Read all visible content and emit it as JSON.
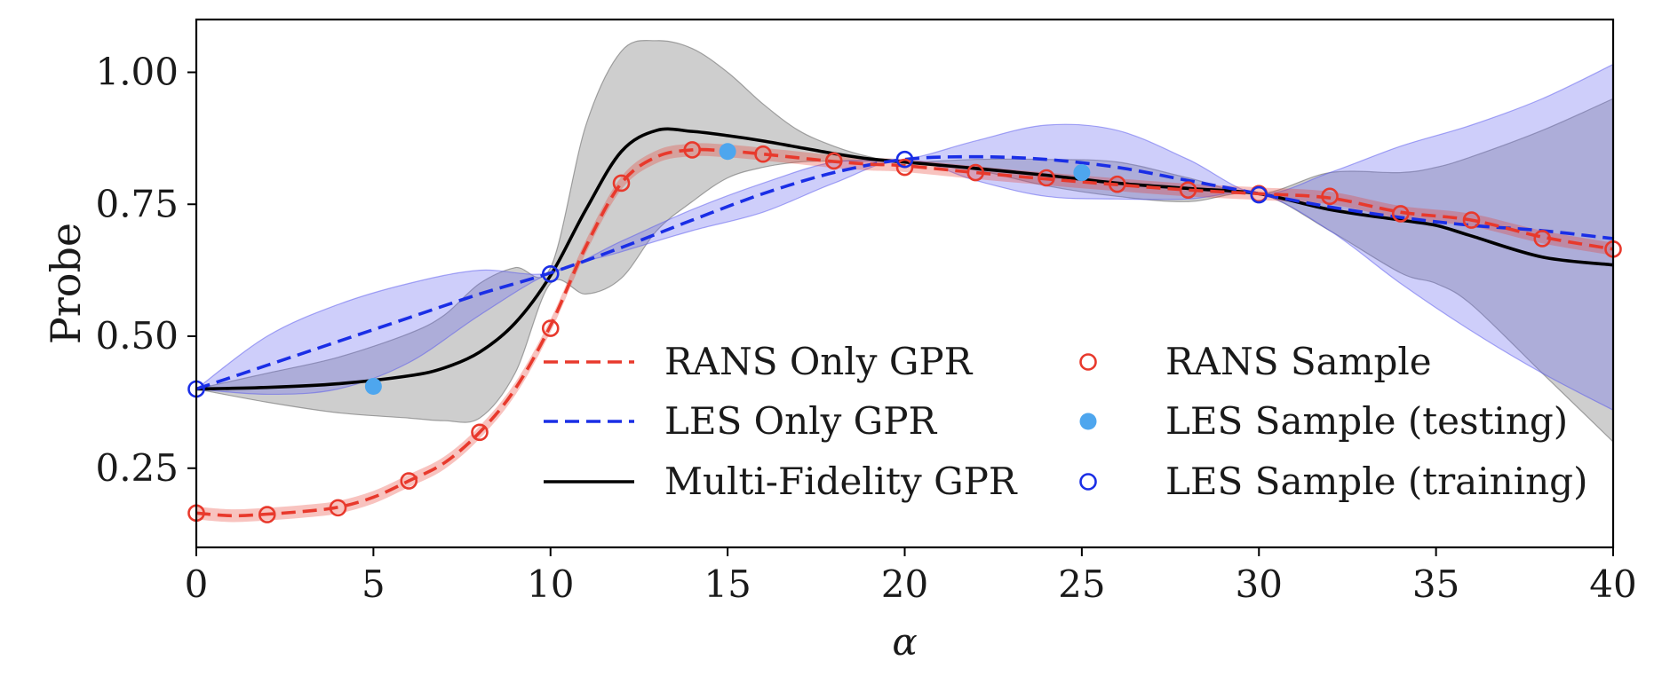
{
  "chart_data": {
    "type": "line",
    "title": "",
    "xlabel": "α",
    "ylabel": "Probe",
    "xlim": [
      0,
      40
    ],
    "ylim": [
      0.1,
      1.1
    ],
    "x_ticks": [
      0,
      5,
      10,
      15,
      20,
      25,
      30,
      35,
      40
    ],
    "x_tick_labels": [
      "0",
      "5",
      "10",
      "15",
      "20",
      "25",
      "30",
      "35",
      "40"
    ],
    "y_ticks": [
      0.25,
      0.5,
      0.75,
      1.0
    ],
    "y_tick_labels": [
      "0.25",
      "0.50",
      "0.75",
      "1.00"
    ],
    "grid": false,
    "legend_position": "lower-right, two columns",
    "colors": {
      "rans": "#e8392c",
      "les": "#1a2ee6",
      "multi_fidelity": "#000000",
      "les_testing": "#4ea6ee",
      "rans_band": "#e8392c",
      "les_band": "#6b6bf0",
      "mf_band": "#8a8a8a"
    },
    "legend": [
      {
        "label": "RANS Only GPR",
        "kind": "line-dashed",
        "color": "#e8392c"
      },
      {
        "label": "LES Only GPR",
        "kind": "line-dashed",
        "color": "#1a2ee6"
      },
      {
        "label": "Multi-Fidelity GPR",
        "kind": "line-solid",
        "color": "#000000"
      },
      {
        "label": "RANS Sample",
        "kind": "marker-open",
        "color": "#e8392c"
      },
      {
        "label": "LES Sample (testing)",
        "kind": "marker-filled",
        "color": "#4ea6ee"
      },
      {
        "label": "LES Sample (training)",
        "kind": "marker-open",
        "color": "#1a2ee6"
      }
    ],
    "series": [
      {
        "name": "RANS Only GPR",
        "style": "dashed",
        "x": [
          0,
          1,
          2,
          3,
          4,
          5,
          6,
          7,
          8,
          9,
          10,
          11,
          12,
          13,
          14,
          15,
          16,
          17,
          18,
          19,
          20,
          22,
          24,
          26,
          28,
          30,
          32,
          34,
          36,
          38,
          40
        ],
        "y": [
          0.165,
          0.16,
          0.163,
          0.168,
          0.176,
          0.195,
          0.226,
          0.26,
          0.318,
          0.4,
          0.52,
          0.67,
          0.79,
          0.84,
          0.853,
          0.851,
          0.845,
          0.838,
          0.831,
          0.826,
          0.823,
          0.81,
          0.798,
          0.787,
          0.777,
          0.77,
          0.762,
          0.735,
          0.72,
          0.688,
          0.665
        ],
        "band_halfwidth": 0.012
      },
      {
        "name": "LES Only GPR",
        "style": "dashed",
        "x": [
          0,
          2,
          4,
          6,
          8,
          10,
          12,
          14,
          16,
          18,
          20,
          22,
          24,
          26,
          28,
          30,
          32,
          34,
          36,
          38,
          40
        ],
        "y": [
          0.4,
          0.445,
          0.49,
          0.535,
          0.58,
          0.62,
          0.668,
          0.72,
          0.77,
          0.81,
          0.835,
          0.84,
          0.835,
          0.82,
          0.795,
          0.77,
          0.745,
          0.725,
          0.71,
          0.7,
          0.685
        ],
        "band_lower": [
          0.4,
          0.39,
          0.4,
          0.45,
          0.54,
          0.62,
          0.66,
          0.7,
          0.735,
          0.79,
          0.835,
          0.795,
          0.765,
          0.76,
          0.76,
          0.77,
          0.7,
          0.6,
          0.51,
          0.43,
          0.36
        ],
        "band_upper": [
          0.4,
          0.5,
          0.56,
          0.6,
          0.625,
          0.62,
          0.68,
          0.74,
          0.79,
          0.83,
          0.835,
          0.87,
          0.9,
          0.89,
          0.835,
          0.77,
          0.81,
          0.86,
          0.9,
          0.95,
          1.015
        ]
      },
      {
        "name": "Multi-Fidelity GPR",
        "style": "solid",
        "x": [
          0,
          2,
          4,
          6,
          7,
          8,
          9,
          10,
          11,
          12,
          13,
          14,
          15,
          16,
          17,
          18,
          19,
          20,
          22,
          24,
          26,
          28,
          30,
          32,
          34,
          35,
          36,
          38,
          40
        ],
        "y": [
          0.4,
          0.403,
          0.41,
          0.425,
          0.44,
          0.47,
          0.525,
          0.615,
          0.74,
          0.85,
          0.89,
          0.888,
          0.88,
          0.87,
          0.858,
          0.846,
          0.836,
          0.83,
          0.818,
          0.805,
          0.79,
          0.78,
          0.77,
          0.74,
          0.72,
          0.71,
          0.69,
          0.65,
          0.635
        ],
        "band_lower": [
          0.4,
          0.375,
          0.355,
          0.345,
          0.34,
          0.345,
          0.43,
          0.6,
          0.58,
          0.61,
          0.7,
          0.755,
          0.8,
          0.82,
          0.83,
          0.832,
          0.832,
          0.83,
          0.815,
          0.785,
          0.765,
          0.755,
          0.77,
          0.7,
          0.62,
          0.6,
          0.56,
          0.43,
          0.3
        ],
        "band_upper": [
          0.4,
          0.43,
          0.46,
          0.505,
          0.54,
          0.6,
          0.63,
          0.63,
          0.9,
          1.04,
          1.06,
          1.045,
          1.0,
          0.94,
          0.89,
          0.86,
          0.84,
          0.83,
          0.835,
          0.835,
          0.83,
          0.8,
          0.77,
          0.81,
          0.81,
          0.82,
          0.84,
          0.89,
          0.95
        ]
      }
    ],
    "markers": [
      {
        "name": "RANS Sample",
        "style": "open",
        "x": [
          0,
          2,
          4,
          6,
          8,
          10,
          12,
          14,
          16,
          18,
          20,
          22,
          24,
          26,
          28,
          30,
          32,
          34,
          36,
          38,
          40
        ],
        "y": [
          0.165,
          0.162,
          0.175,
          0.226,
          0.318,
          0.515,
          0.79,
          0.853,
          0.845,
          0.832,
          0.82,
          0.81,
          0.8,
          0.788,
          0.777,
          0.77,
          0.765,
          0.732,
          0.72,
          0.685,
          0.665
        ]
      },
      {
        "name": "LES Sample (testing)",
        "style": "filled",
        "x": [
          5,
          15,
          25
        ],
        "y": [
          0.405,
          0.85,
          0.81
        ]
      },
      {
        "name": "LES Sample (training)",
        "style": "open",
        "x": [
          0,
          10,
          20,
          30
        ],
        "y": [
          0.4,
          0.618,
          0.835,
          0.768
        ]
      }
    ]
  }
}
